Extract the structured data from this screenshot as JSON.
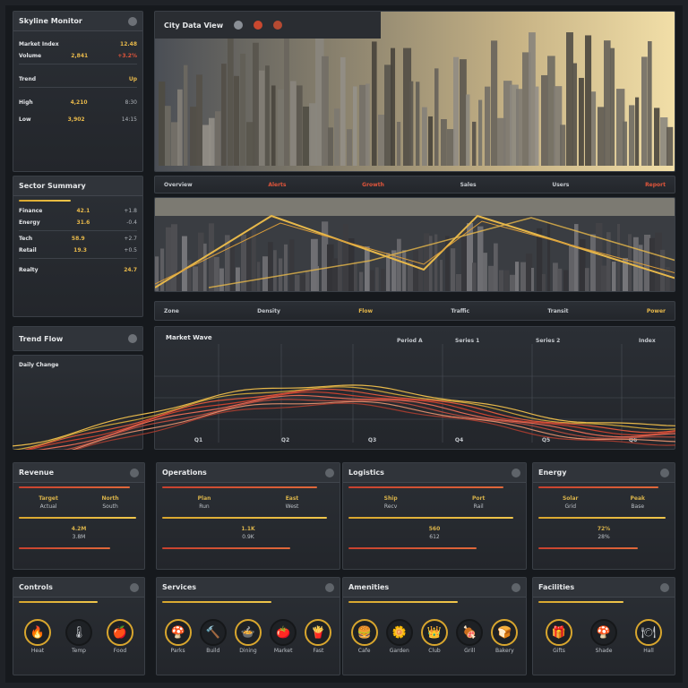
{
  "colors": {
    "accent": "#e7b84a",
    "red": "#e0553b",
    "panel": "#2b2f35",
    "bg": "#16191d"
  },
  "left_panel_1": {
    "title": "Skyline Monitor",
    "rows": [
      {
        "l": "Market Index",
        "r": "12.48"
      },
      {
        "l": "Volume",
        "a": "2,841",
        "r": "+3.2%"
      },
      {
        "l": "Trend",
        "a": "Up"
      },
      {
        "l": "High",
        "a": "4,210",
        "r": "8:30"
      },
      {
        "l": "Low",
        "a": "3,902",
        "r": "14:15"
      }
    ]
  },
  "left_panel_2": {
    "title": "Sector Summary",
    "rows": [
      {
        "l": "Finance",
        "a": "42.1",
        "r": "+1.8"
      },
      {
        "l": "Energy",
        "a": "31.6",
        "r": "-0.4"
      },
      {
        "l": "Tech",
        "a": "58.9",
        "r": "+2.7"
      },
      {
        "l": "Retail",
        "a": "19.3",
        "r": "+0.5"
      },
      {
        "l": "Realty",
        "a": "24.7"
      }
    ]
  },
  "skyline_header": {
    "title": "City Data View",
    "icons": [
      "cloud-icon",
      "alert-icon",
      "lock-icon"
    ]
  },
  "strip_1": [
    "Overview",
    "Alerts",
    "Growth",
    "Sales",
    "Users",
    "Report"
  ],
  "strip_2": [
    "Zone",
    "Density",
    "Flow",
    "Traffic",
    "Transit",
    "Power"
  ],
  "wave_left": {
    "title": "Trend Flow",
    "sub": "Daily Change"
  },
  "wave_main": {
    "title": "Market Wave",
    "labels": [
      "Period A",
      "Series 1",
      "Series 2",
      "Index"
    ],
    "footer": [
      "Q1",
      "Q2",
      "Q3",
      "Q4",
      "Q5",
      "Q6"
    ]
  },
  "stat_panels": [
    {
      "title": "Revenue",
      "rows": [
        [
          "Target",
          "Actual"
        ],
        [
          "North",
          "South"
        ],
        [
          "4.2M",
          "3.8M"
        ]
      ]
    },
    {
      "title": "Operations",
      "rows": [
        [
          "Plan",
          "Run"
        ],
        [
          "East",
          "West"
        ],
        [
          "1.1K",
          "0.9K"
        ]
      ]
    },
    {
      "title": "Logistics",
      "rows": [
        [
          "Ship",
          "Recv"
        ],
        [
          "Port",
          "Rail"
        ],
        [
          "560",
          "612"
        ]
      ]
    },
    {
      "title": "Energy",
      "rows": [
        [
          "Solar",
          "Grid"
        ],
        [
          "Peak",
          "Base"
        ],
        [
          "72%",
          "28%"
        ]
      ]
    }
  ],
  "icon_panels": [
    {
      "title": "Controls",
      "buttons": [
        {
          "icon": "🔥",
          "label": "Heat"
        },
        {
          "icon": "🌡",
          "label": "Temp"
        },
        {
          "icon": "🍎",
          "label": "Food"
        }
      ]
    },
    {
      "title": "Services",
      "buttons": [
        {
          "icon": "🍄",
          "label": "Parks"
        },
        {
          "icon": "🔨",
          "label": "Build"
        },
        {
          "icon": "🍲",
          "label": "Dining"
        },
        {
          "icon": "🍅",
          "label": "Market"
        },
        {
          "icon": "🍟",
          "label": "Fast"
        }
      ]
    },
    {
      "title": "Amenities",
      "buttons": [
        {
          "icon": "🍔",
          "label": "Cafe"
        },
        {
          "icon": "🌼",
          "label": "Garden"
        },
        {
          "icon": "👑",
          "label": "Club"
        },
        {
          "icon": "🍖",
          "label": "Grill"
        },
        {
          "icon": "🍞",
          "label": "Bakery"
        }
      ]
    },
    {
      "title": "Facilities",
      "buttons": [
        {
          "icon": "🎁",
          "label": "Gifts"
        },
        {
          "icon": "🍄",
          "label": "Shade"
        },
        {
          "icon": "🍽",
          "label": "Hall"
        }
      ]
    }
  ]
}
